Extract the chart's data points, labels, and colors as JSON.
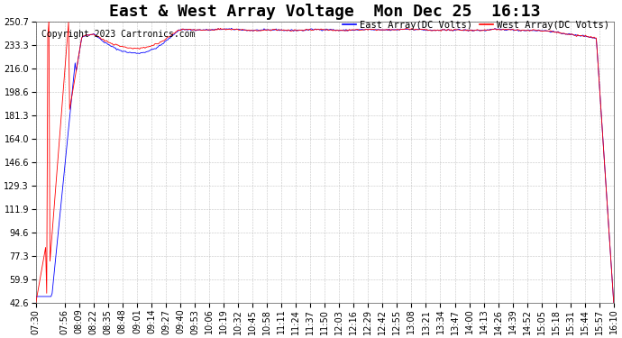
{
  "title": "East & West Array Voltage  Mon Dec 25  16:13",
  "copyright": "Copyright 2023 Cartronics.com",
  "legend_east": "East Array(DC Volts)",
  "legend_west": "West Array(DC Volts)",
  "color_east": "#0000ff",
  "color_west": "#ff0000",
  "bg_color": "#ffffff",
  "grid_color": "#aaaaaa",
  "yticks": [
    42.6,
    59.9,
    77.3,
    94.6,
    111.9,
    129.3,
    146.6,
    164.0,
    181.3,
    198.6,
    216.0,
    233.3,
    250.7
  ],
  "ymin": 42.6,
  "ymax": 250.7,
  "xtick_labels": [
    "07:30",
    "07:56",
    "08:09",
    "08:22",
    "08:35",
    "08:48",
    "09:01",
    "09:14",
    "09:27",
    "09:40",
    "09:53",
    "10:06",
    "10:19",
    "10:32",
    "10:45",
    "10:58",
    "11:11",
    "11:24",
    "11:37",
    "11:50",
    "12:03",
    "12:16",
    "12:29",
    "12:42",
    "12:55",
    "13:08",
    "13:21",
    "13:34",
    "13:47",
    "14:00",
    "14:13",
    "14:26",
    "14:39",
    "14:52",
    "15:05",
    "15:18",
    "15:31",
    "15:44",
    "15:57",
    "16:10"
  ],
  "title_fontsize": 13,
  "label_fontsize": 7.5,
  "tick_fontsize": 7,
  "copyright_fontsize": 7
}
